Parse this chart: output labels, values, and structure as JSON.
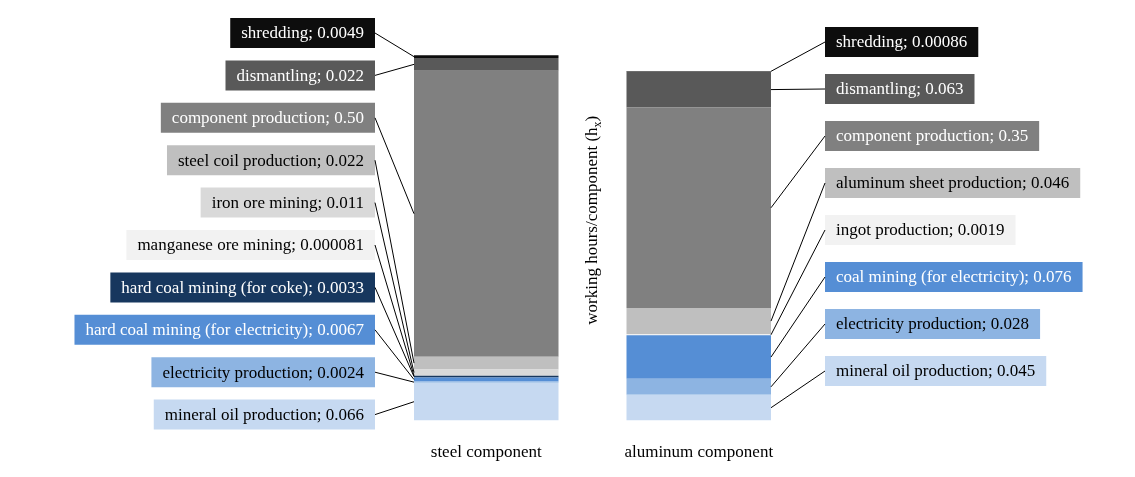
{
  "chart_data": {
    "type": "bar",
    "stacked": true,
    "categories": [
      "steel component",
      "aluminum component"
    ],
    "ylabel": "working hours/component (h$_{x}$)",
    "series": [
      {
        "color": "#c6d9f1",
        "values": [
          0.066,
          0.045
        ],
        "value_labels": [
          "mineral oil production; 0.066",
          "mineral oil production; 0.045"
        ]
      },
      {
        "color": "#8db4e2",
        "values": [
          0.0024,
          0.028
        ],
        "value_labels": [
          "electricity production; 0.0024",
          "electricity production; 0.028"
        ]
      },
      {
        "color": "#558ed5",
        "values": [
          0.0067,
          null
        ],
        "value_labels": [
          "hard coal mining (for electricity); 0.0067",
          null
        ]
      },
      {
        "color": "#558ed5",
        "values": [
          null,
          0.076
        ],
        "value_labels": [
          null,
          "coal mining (for electricity); 0.076"
        ]
      },
      {
        "color": "#17375e",
        "values": [
          0.0033,
          null
        ],
        "value_labels": [
          "hard coal mining (for coke); 0.0033",
          null
        ]
      },
      {
        "color": "#f2f2f2",
        "values": [
          8.1e-05,
          null
        ],
        "value_labels": [
          "manganese ore mining; 0.000081",
          null
        ]
      },
      {
        "color": "#d9d9d9",
        "values": [
          0.011,
          null
        ],
        "value_labels": [
          "iron ore mining; 0.011",
          null
        ]
      },
      {
        "color": "#bfbfbf",
        "values": [
          0.022,
          null
        ],
        "value_labels": [
          "steel coil production; 0.022",
          null
        ]
      },
      {
        "color": "#f2f2f2",
        "values": [
          null,
          0.0019
        ],
        "value_labels": [
          null,
          "ingot production; 0.0019"
        ]
      },
      {
        "color": "#bfbfbf",
        "values": [
          null,
          0.046
        ],
        "value_labels": [
          null,
          "aluminum sheet production; 0.046"
        ]
      },
      {
        "color": "#808080",
        "values": [
          0.5,
          0.35
        ],
        "value_labels": [
          "component production; 0.50",
          "component production; 0.35"
        ]
      },
      {
        "color": "#595959",
        "values": [
          0.022,
          0.063
        ],
        "value_labels": [
          "dismantling; 0.022",
          "dismantling; 0.063"
        ]
      },
      {
        "color": "#0d0d0d",
        "values": [
          0.0049,
          0.00086
        ],
        "value_labels": [
          "shredding; 0.0049",
          "shredding; 0.00086"
        ]
      }
    ]
  }
}
